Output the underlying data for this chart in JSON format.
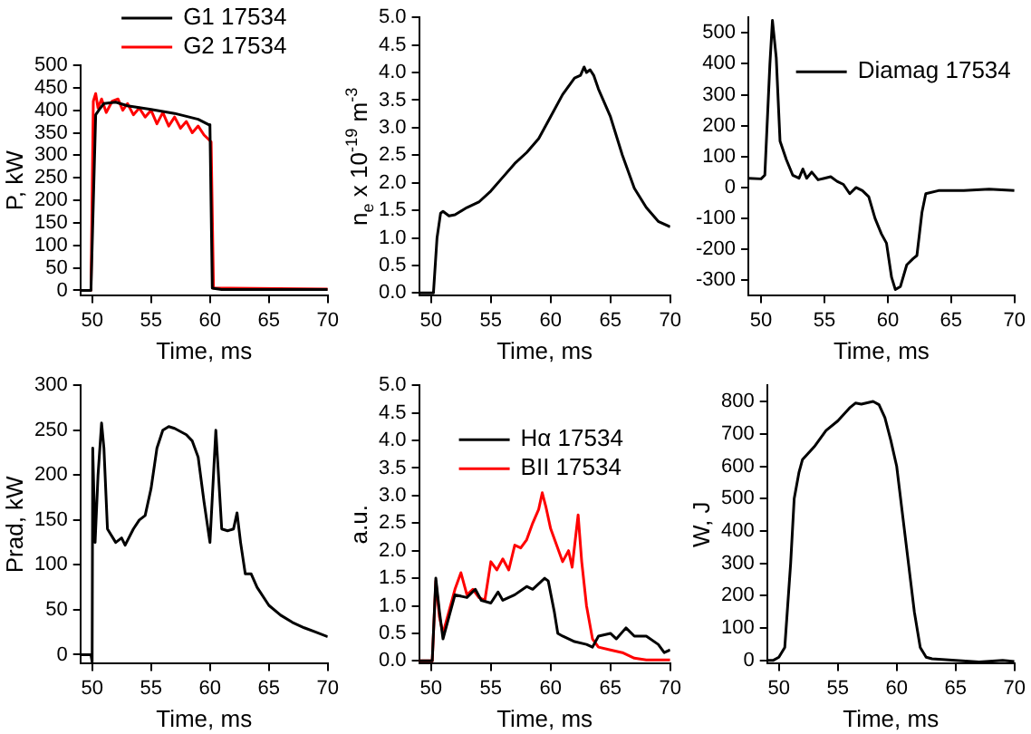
{
  "chart_data": [
    {
      "type": "line",
      "xlabel": "Time, ms",
      "ylabel": "P, kW",
      "xlim": [
        49,
        70
      ],
      "xticks": [
        50,
        55,
        60,
        65,
        70
      ],
      "ylim": [
        -12,
        500
      ],
      "yticks": [
        0,
        50,
        100,
        150,
        200,
        250,
        300,
        350,
        400,
        450,
        500
      ],
      "grid": false,
      "legend": "top",
      "marker": "none",
      "line_style": "solid",
      "series": [
        {
          "name": "G1 17534",
          "color": "#000000",
          "x": [
            49,
            49.9,
            50.3,
            50.7,
            51,
            52,
            53,
            55,
            57,
            59,
            59.9,
            60,
            60.2,
            61,
            70
          ],
          "values": [
            0,
            0,
            390,
            405,
            415,
            418,
            410,
            402,
            393,
            380,
            368,
            365,
            5,
            2,
            2
          ]
        },
        {
          "name": "G2 17534",
          "color": "#ff0000",
          "x": [
            49,
            49.9,
            50.1,
            50.3,
            50.5,
            50.8,
            51.2,
            51.7,
            52.2,
            52.6,
            53,
            53.5,
            54,
            54.5,
            55,
            55.5,
            56,
            56.5,
            57,
            57.5,
            58,
            58.5,
            59,
            59.5,
            59.9,
            60.1,
            60.3,
            61,
            70
          ],
          "values": [
            0,
            0,
            420,
            437,
            405,
            425,
            395,
            420,
            425,
            400,
            415,
            390,
            405,
            385,
            400,
            370,
            395,
            365,
            385,
            360,
            375,
            350,
            365,
            345,
            335,
            330,
            5,
            5,
            3
          ]
        }
      ]
    },
    {
      "type": "line",
      "xlabel": "Time, ms",
      "ylabel": "n$_{e}$ x 10$^{-19}$ m$^{-3}$",
      "xlim": [
        49,
        70
      ],
      "xticks": [
        50,
        55,
        60,
        65,
        70
      ],
      "ylim": [
        -0.05,
        5
      ],
      "yticks": [
        {
          "value": 0,
          "label": "0.0"
        },
        0.5,
        {
          "value": 1,
          "label": "1.0"
        },
        1.5,
        {
          "value": 2,
          "label": "2.0"
        },
        2.5,
        {
          "value": 3,
          "label": "3.0"
        },
        3.5,
        {
          "value": 4,
          "label": "4.0"
        },
        4.5,
        {
          "value": 5,
          "label": "5.0"
        }
      ],
      "grid": false,
      "marker": "none",
      "line_style": "solid",
      "series": [
        {
          "color": "#000000",
          "x": [
            49,
            50.2,
            50.5,
            50.8,
            51,
            51.5,
            52,
            53,
            54,
            55,
            56,
            57,
            58,
            59,
            60,
            61,
            62,
            62.5,
            62.8,
            63,
            63.3,
            63.6,
            64,
            65,
            66,
            67,
            68,
            69,
            70
          ],
          "values": [
            0,
            0,
            1.0,
            1.45,
            1.48,
            1.4,
            1.42,
            1.55,
            1.65,
            1.85,
            2.1,
            2.35,
            2.55,
            2.8,
            3.2,
            3.6,
            3.9,
            3.95,
            4.1,
            4.0,
            4.05,
            3.95,
            3.7,
            3.2,
            2.5,
            1.9,
            1.55,
            1.3,
            1.2
          ]
        }
      ]
    },
    {
      "type": "line",
      "xlabel": "Time, ms",
      "xlim": [
        49,
        70
      ],
      "xticks": [
        50,
        55,
        60,
        65,
        70
      ],
      "ylim": [
        -350,
        550
      ],
      "yticks": [
        -300,
        -200,
        -100,
        0,
        100,
        200,
        300,
        400,
        500
      ],
      "grid": false,
      "legend": "top right",
      "marker": "none",
      "line_style": "solid",
      "series": [
        {
          "name": "Diamag 17534",
          "color": "#000000",
          "x": [
            49,
            50,
            50.3,
            50.7,
            50.9,
            51.2,
            51.5,
            52,
            52.5,
            53,
            53.3,
            53.6,
            54,
            54.5,
            55,
            55.5,
            56,
            56.5,
            57,
            57.5,
            58,
            58.5,
            59,
            59.5,
            59.9,
            60.3,
            60.6,
            61,
            61.5,
            62,
            62.3,
            62.7,
            63,
            64,
            66,
            68,
            70
          ],
          "values": [
            30,
            28,
            40,
            400,
            540,
            420,
            150,
            90,
            40,
            30,
            60,
            30,
            50,
            25,
            30,
            35,
            20,
            10,
            -20,
            0,
            -10,
            -30,
            -100,
            -150,
            -180,
            -290,
            -330,
            -320,
            -250,
            -230,
            -220,
            -80,
            -20,
            -10,
            -10,
            -5,
            -10
          ]
        }
      ]
    },
    {
      "type": "line",
      "xlabel": "Time, ms",
      "ylabel": "Prad, kW",
      "xlim": [
        49,
        70
      ],
      "xticks": [
        50,
        55,
        60,
        65,
        70
      ],
      "ylim": [
        -10,
        300
      ],
      "yticks": [
        0,
        50,
        100,
        150,
        200,
        250,
        300
      ],
      "grid": false,
      "marker": "none",
      "line_style": "solid",
      "series": [
        {
          "color": "#000000",
          "x": [
            49,
            49.9,
            50,
            50.05,
            50.25,
            50.5,
            50.8,
            51,
            51.3,
            52,
            52.5,
            52.8,
            53.5,
            54,
            54.5,
            55,
            55.5,
            56,
            56.5,
            57,
            58,
            58.5,
            59,
            59.5,
            60,
            60.5,
            61,
            61.5,
            62,
            62.3,
            62.6,
            63,
            63.5,
            64,
            65,
            66,
            67,
            68,
            69,
            70
          ],
          "values": [
            0,
            0,
            -8,
            230,
            125,
            200,
            258,
            230,
            140,
            125,
            130,
            122,
            140,
            150,
            155,
            185,
            230,
            250,
            254,
            252,
            245,
            238,
            220,
            170,
            125,
            250,
            140,
            138,
            140,
            158,
            125,
            90,
            90,
            75,
            55,
            44,
            36,
            30,
            25,
            20
          ]
        }
      ]
    },
    {
      "type": "line",
      "xlabel": "Time, ms",
      "ylabel": "a.u.",
      "xlim": [
        49,
        70
      ],
      "xticks": [
        50,
        55,
        60,
        65,
        70
      ],
      "ylim": [
        -0.05,
        5
      ],
      "yticks": [
        {
          "value": 0,
          "label": "0.0"
        },
        0.5,
        {
          "value": 1,
          "label": "1.0"
        },
        1.5,
        {
          "value": 2,
          "label": "2.0"
        },
        2.5,
        {
          "value": 3,
          "label": "3.0"
        },
        3.5,
        {
          "value": 4,
          "label": "4.0"
        },
        4.5,
        {
          "value": 5,
          "label": "5.0"
        }
      ],
      "grid": false,
      "legend": "top left",
      "marker": "none",
      "line_style": "solid",
      "series": [
        {
          "name": "Hα 17534",
          "color": "#000000",
          "x": [
            49,
            50.1,
            50.4,
            50.7,
            51,
            51.5,
            52,
            53,
            53.7,
            54.2,
            55,
            55.6,
            56,
            57,
            58,
            58.5,
            59.5,
            59.8,
            60.3,
            60.6,
            61,
            62,
            63,
            63.5,
            64,
            65,
            65.5,
            66.3,
            67,
            68,
            69,
            69.5,
            70
          ],
          "values": [
            0,
            0,
            1.5,
            0.9,
            0.4,
            0.8,
            1.2,
            1.15,
            1.3,
            1.1,
            1.05,
            1.25,
            1.1,
            1.2,
            1.35,
            1.3,
            1.5,
            1.45,
            0.9,
            0.5,
            0.45,
            0.35,
            0.3,
            0.25,
            0.45,
            0.5,
            0.4,
            0.6,
            0.45,
            0.45,
            0.3,
            0.15,
            0.2
          ]
        },
        {
          "name": "BII 17534",
          "color": "#ff0000",
          "x": [
            49,
            50.1,
            50.4,
            50.7,
            51,
            51.5,
            52,
            52.5,
            53,
            53.5,
            54,
            54.5,
            55,
            55.5,
            56,
            56.5,
            57,
            57.5,
            58,
            58.5,
            59,
            59.3,
            59.6,
            60,
            60.5,
            61,
            61.5,
            61.8,
            62.3,
            62.6,
            63,
            63.5,
            64,
            65,
            66,
            67,
            68,
            70
          ],
          "values": [
            0,
            0,
            1.45,
            0.8,
            0.5,
            0.9,
            1.3,
            1.6,
            1.2,
            1.3,
            1.15,
            1.1,
            1.8,
            1.65,
            1.85,
            1.65,
            2.1,
            2.05,
            2.2,
            2.5,
            2.75,
            3.05,
            2.8,
            2.4,
            2.1,
            1.8,
            2.0,
            1.7,
            2.65,
            1.8,
            1.0,
            0.4,
            0.25,
            0.2,
            0.15,
            0.05,
            0.02,
            0.02
          ]
        }
      ]
    },
    {
      "type": "line",
      "xlabel": "Time, ms",
      "ylabel": "W, J",
      "xlim": [
        49,
        70
      ],
      "xticks": [
        50,
        55,
        60,
        65,
        70
      ],
      "ylim": [
        -10,
        850
      ],
      "yticks": [
        0,
        100,
        200,
        300,
        400,
        500,
        600,
        700,
        800
      ],
      "grid": false,
      "marker": "none",
      "line_style": "solid",
      "series": [
        {
          "color": "#000000",
          "x": [
            49,
            49.5,
            50,
            50.5,
            51,
            51.3,
            51.7,
            52,
            53,
            54,
            55,
            56,
            56.5,
            57,
            58,
            58.5,
            59,
            59.5,
            60,
            60.5,
            61,
            61.5,
            62,
            62.5,
            63,
            65,
            67,
            69,
            70
          ],
          "values": [
            0,
            0,
            10,
            40,
            300,
            500,
            580,
            620,
            660,
            710,
            740,
            780,
            795,
            792,
            800,
            790,
            750,
            680,
            600,
            450,
            300,
            150,
            40,
            10,
            5,
            0,
            -5,
            0,
            -3
          ]
        }
      ]
    }
  ]
}
